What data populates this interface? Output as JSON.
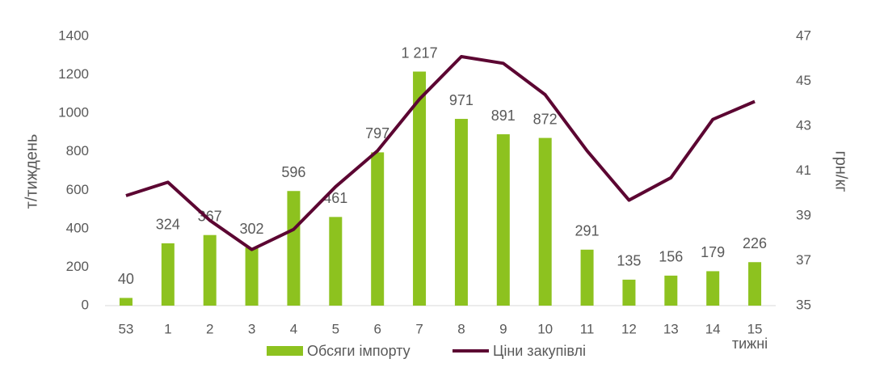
{
  "chart_data": {
    "type": "bar_line",
    "ylabel": "т/тиждень",
    "y2label": "грн/кг",
    "xlabel": "тижні",
    "categories": [
      "53",
      "1",
      "2",
      "3",
      "4",
      "5",
      "6",
      "7",
      "8",
      "9",
      "10",
      "11",
      "12",
      "13",
      "14",
      "15"
    ],
    "series": [
      {
        "name": "Обсяги імпорту",
        "type": "bar",
        "color": "#8dc21f",
        "values": [
          40,
          324,
          367,
          302,
          596,
          461,
          797,
          1217,
          971,
          891,
          872,
          291,
          135,
          156,
          179,
          226
        ],
        "value_labels": [
          "40",
          "324",
          "367",
          "302",
          "596",
          "461",
          "797",
          "1 217",
          "971",
          "891",
          "872",
          "291",
          "135",
          "156",
          "179",
          "226"
        ]
      },
      {
        "name": "Ціни закупівлі",
        "type": "line",
        "axis": "y2",
        "color": "#5c0632",
        "values": [
          39.9,
          40.5,
          38.8,
          37.5,
          38.4,
          40.3,
          41.9,
          44.2,
          46.1,
          45.8,
          44.4,
          41.9,
          39.7,
          40.7,
          43.3,
          44.1
        ]
      }
    ],
    "ylim": [
      0,
      1400
    ],
    "yticks": [
      0,
      200,
      400,
      600,
      800,
      1000,
      1200,
      1400
    ],
    "y2lim": [
      35,
      47
    ],
    "y2ticks": [
      35,
      37,
      39,
      41,
      43,
      45,
      47
    ],
    "legend": "bottom"
  }
}
